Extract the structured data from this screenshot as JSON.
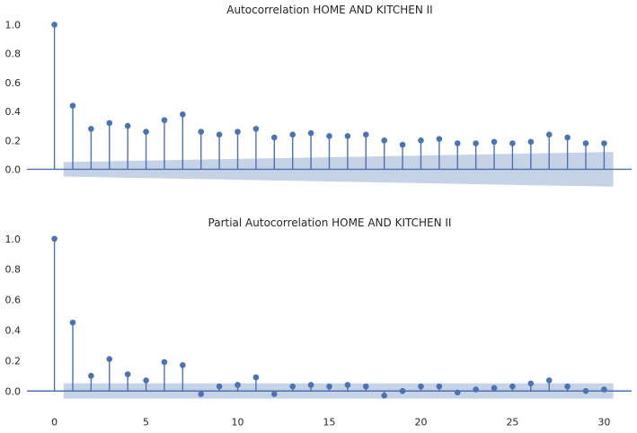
{
  "chart_data": [
    {
      "type": "stem",
      "title": "Autocorrelation HOME AND KITCHEN II",
      "xlim": [
        -1.5,
        31.5
      ],
      "ylim": [
        -0.12,
        1.06
      ],
      "yticks": [
        0.0,
        0.2,
        0.4,
        0.6,
        0.8,
        1.0
      ],
      "ytick_labels": [
        "0.0",
        "0.2",
        "0.4",
        "0.6",
        "0.8",
        "1.0"
      ],
      "lags": [
        0,
        1,
        2,
        3,
        4,
        5,
        6,
        7,
        8,
        9,
        10,
        11,
        12,
        13,
        14,
        15,
        16,
        17,
        18,
        19,
        20,
        21,
        22,
        23,
        24,
        25,
        26,
        27,
        28,
        29,
        30
      ],
      "values": [
        1.0,
        0.44,
        0.28,
        0.32,
        0.3,
        0.26,
        0.34,
        0.38,
        0.26,
        0.24,
        0.26,
        0.28,
        0.22,
        0.24,
        0.25,
        0.23,
        0.23,
        0.24,
        0.2,
        0.17,
        0.2,
        0.21,
        0.18,
        0.18,
        0.19,
        0.18,
        0.19,
        0.24,
        0.22,
        0.18,
        0.18
      ],
      "confint_lags": [
        0.5,
        30.5
      ],
      "confint_upper": [
        0.05,
        0.12
      ],
      "confint_lower": [
        -0.05,
        -0.12
      ],
      "grid": false
    },
    {
      "type": "stem",
      "title": "Partial Autocorrelation HOME AND KITCHEN II",
      "xlim": [
        -1.5,
        31.5
      ],
      "ylim": [
        -0.12,
        1.06
      ],
      "yticks": [
        0.0,
        0.2,
        0.4,
        0.6,
        0.8,
        1.0
      ],
      "ytick_labels": [
        "0.0",
        "0.2",
        "0.4",
        "0.6",
        "0.8",
        "1.0"
      ],
      "xticks": [
        0,
        5,
        10,
        15,
        20,
        25,
        30
      ],
      "xtick_labels": [
        "0",
        "5",
        "10",
        "15",
        "20",
        "25",
        "30"
      ],
      "lags": [
        0,
        1,
        2,
        3,
        4,
        5,
        6,
        7,
        8,
        9,
        10,
        11,
        12,
        13,
        14,
        15,
        16,
        17,
        18,
        19,
        20,
        21,
        22,
        23,
        24,
        25,
        26,
        27,
        28,
        29,
        30
      ],
      "values": [
        1.0,
        0.45,
        0.1,
        0.21,
        0.11,
        0.07,
        0.19,
        0.17,
        -0.02,
        0.03,
        0.04,
        0.09,
        -0.02,
        0.03,
        0.04,
        0.03,
        0.04,
        0.03,
        -0.03,
        0.0,
        0.03,
        0.03,
        -0.01,
        0.01,
        0.02,
        0.03,
        0.05,
        0.07,
        0.03,
        0.0,
        0.01
      ],
      "confint_lags": [
        0.5,
        30.5
      ],
      "confint_upper": [
        0.05,
        0.05
      ],
      "confint_lower": [
        -0.05,
        -0.05
      ],
      "grid": false
    }
  ],
  "colors": {
    "stem": "#4c72b0",
    "band": "#c6d3e6",
    "text": "#262626"
  }
}
